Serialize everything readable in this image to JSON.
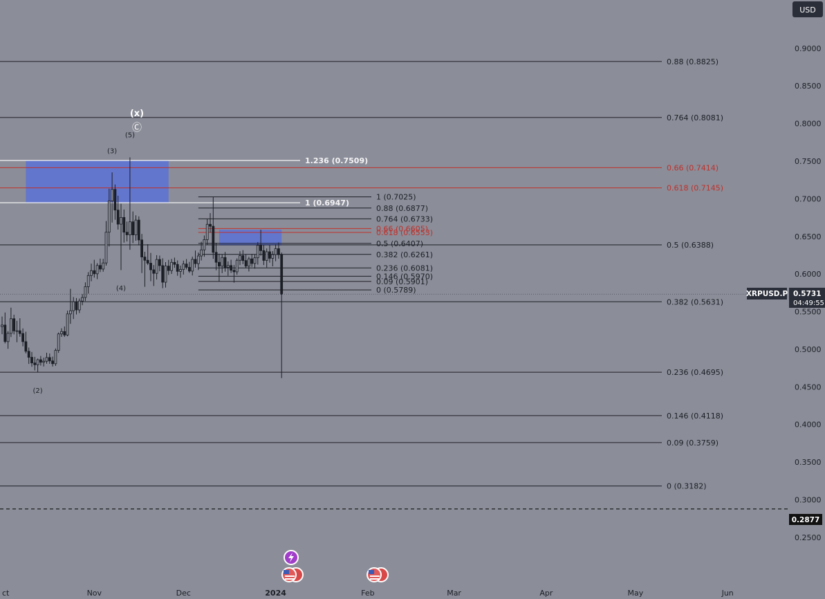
{
  "currency": "USD",
  "colors": {
    "background": "#8b8d98",
    "text": "#1c1e26",
    "line": "#1c1e26",
    "red": "#c0302b",
    "white": "#f4f4f6",
    "zone": "#5a72d6",
    "badge": "#2a2e39",
    "badge_text": "#ffffff"
  },
  "symbol_badge": {
    "label": "XRPUSD.P",
    "price": "0.5731",
    "countdown": "04:49:55"
  },
  "low_badge": {
    "price": "0.2877"
  },
  "annotations": {
    "x_label": "(x)",
    "c_label": "Ⓒ",
    "wave_2": "(2)",
    "wave_3": "(3)",
    "wave_4": "(4)",
    "wave_5": "(5)"
  },
  "chart_data": {
    "type": "candlestick",
    "symbol": "XRPUSD.P",
    "last_price": 0.5731,
    "ylim": [
      0.2333,
      0.9201
    ],
    "xlim": [
      "2023-10-01",
      "2024-06-30"
    ],
    "y_ticks": [
      "0.2500",
      "0.3000",
      "0.3500",
      "0.4000",
      "0.4500",
      "0.5000",
      "0.5500",
      "0.6000",
      "0.6500",
      "0.7000",
      "0.7500",
      "0.8000",
      "0.8500",
      "0.9000"
    ],
    "x_ticks": [
      {
        "label": "ct",
        "date": "2023-10-01"
      },
      {
        "label": "Nov",
        "date": "2023-11-01"
      },
      {
        "label": "Dec",
        "date": "2023-12-01"
      },
      {
        "label": "2024",
        "date": "2024-01-01"
      },
      {
        "label": "Feb",
        "date": "2024-02-01"
      },
      {
        "label": "Mar",
        "date": "2024-03-01"
      },
      {
        "label": "Apr",
        "date": "2024-04-01"
      },
      {
        "label": "May",
        "date": "2024-05-01"
      },
      {
        "label": "Jun",
        "date": "2024-06-01"
      }
    ],
    "zones": [
      {
        "from": "2023-10-09",
        "to": "2023-11-26",
        "low": 0.6947,
        "high": 0.7509
      },
      {
        "from": "2023-12-13",
        "to": "2024-01-03",
        "low": 0.638,
        "high": 0.659
      }
    ],
    "fib_large": [
      {
        "label": "0.88 (0.8825)",
        "value": 0.8825,
        "color": "dark"
      },
      {
        "label": "0.764 (0.8081)",
        "value": 0.8081,
        "color": "dark"
      },
      {
        "label": "0.66 (0.7414)",
        "value": 0.7414,
        "color": "red"
      },
      {
        "label": "0.618 (0.7145)",
        "value": 0.7145,
        "color": "red"
      },
      {
        "label": "0.5 (0.6388)",
        "value": 0.6388,
        "color": "dark"
      },
      {
        "label": "0.382 (0.5631)",
        "value": 0.5631,
        "color": "dark"
      },
      {
        "label": "0.236 (0.4695)",
        "value": 0.4695,
        "color": "dark"
      },
      {
        "label": "0.146 (0.4118)",
        "value": 0.4118,
        "color": "dark"
      },
      {
        "label": "0.09 (0.3759)",
        "value": 0.3759,
        "color": "dark"
      },
      {
        "label": "0 (0.3182)",
        "value": 0.3182,
        "color": "dark"
      }
    ],
    "fib_ext": [
      {
        "label": "1.236 (0.7509)",
        "value": 0.7509
      },
      {
        "label": "1 (0.6947)",
        "value": 0.6947
      }
    ],
    "fib_small": [
      {
        "label": "1 (0.7025)",
        "value": 0.7025,
        "color": "dark"
      },
      {
        "label": "0.88 (0.6877)",
        "value": 0.6877,
        "color": "dark"
      },
      {
        "label": "0.764 (0.6733)",
        "value": 0.6733,
        "color": "dark"
      },
      {
        "label": "0.66 (0.6605)",
        "value": 0.6605,
        "color": "red"
      },
      {
        "label": "0.618 (0.6553)",
        "value": 0.6553,
        "color": "red"
      },
      {
        "label": "0.5 (0.6407)",
        "value": 0.6407,
        "color": "dark"
      },
      {
        "label": "0.382 (0.6261)",
        "value": 0.6261,
        "color": "dark"
      },
      {
        "label": "0.236 (0.6081)",
        "value": 0.6081,
        "color": "dark"
      },
      {
        "label": "0.146 (0.5970)",
        "value": 0.597,
        "color": "dark"
      },
      {
        "label": "0.09 (0.5901)",
        "value": 0.5901,
        "color": "dark"
      },
      {
        "label": "0 (0.5789)",
        "value": 0.5789,
        "color": "dark"
      }
    ],
    "low_line": 0.2877,
    "wave_labels": [
      {
        "label": "(2)",
        "date": "2023-10-13",
        "value": 0.455
      },
      {
        "label": "(3)",
        "date": "2023-11-07",
        "value": 0.7551
      },
      {
        "label": "(4)",
        "date": "2023-11-10",
        "value": 0.591
      },
      {
        "label": "(5)",
        "date": "2023-11-13",
        "value": 0.776
      }
    ],
    "candles": [
      {
        "date": "2023-10-01",
        "open": 0.5301,
        "high": 0.5435,
        "low": 0.52,
        "close": 0.5322
      },
      {
        "date": "2023-10-02",
        "open": 0.5322,
        "high": 0.5489,
        "low": 0.5078,
        "close": 0.5102
      },
      {
        "date": "2023-10-03",
        "open": 0.5102,
        "high": 0.5241,
        "low": 0.5006,
        "close": 0.5212
      },
      {
        "date": "2023-10-04",
        "open": 0.5212,
        "high": 0.5553,
        "low": 0.5162,
        "close": 0.5406
      },
      {
        "date": "2023-10-05",
        "open": 0.5406,
        "high": 0.5459,
        "low": 0.5198,
        "close": 0.5244
      },
      {
        "date": "2023-10-06",
        "open": 0.5244,
        "high": 0.5379,
        "low": 0.5094,
        "close": 0.5246
      },
      {
        "date": "2023-10-07",
        "open": 0.5246,
        "high": 0.5412,
        "low": 0.5166,
        "close": 0.5209
      },
      {
        "date": "2023-10-08",
        "open": 0.5209,
        "high": 0.5277,
        "low": 0.5039,
        "close": 0.5101
      },
      {
        "date": "2023-10-09",
        "open": 0.5101,
        "high": 0.5233,
        "low": 0.4946,
        "close": 0.4973
      },
      {
        "date": "2023-10-10",
        "open": 0.4973,
        "high": 0.5022,
        "low": 0.4805,
        "close": 0.4893
      },
      {
        "date": "2023-10-11",
        "open": 0.4893,
        "high": 0.4964,
        "low": 0.4767,
        "close": 0.4818
      },
      {
        "date": "2023-10-12",
        "open": 0.4818,
        "high": 0.4899,
        "low": 0.4719,
        "close": 0.4794
      },
      {
        "date": "2023-10-13",
        "open": 0.4794,
        "high": 0.4876,
        "low": 0.4695,
        "close": 0.4861
      },
      {
        "date": "2023-10-14",
        "open": 0.4861,
        "high": 0.4911,
        "low": 0.4783,
        "close": 0.4827
      },
      {
        "date": "2023-10-15",
        "open": 0.4827,
        "high": 0.4888,
        "low": 0.4771,
        "close": 0.4841
      },
      {
        "date": "2023-10-16",
        "open": 0.4841,
        "high": 0.4953,
        "low": 0.4808,
        "close": 0.489
      },
      {
        "date": "2023-10-17",
        "open": 0.489,
        "high": 0.4944,
        "low": 0.4806,
        "close": 0.4845
      },
      {
        "date": "2023-10-18",
        "open": 0.4845,
        "high": 0.4902,
        "low": 0.4771,
        "close": 0.4808
      },
      {
        "date": "2023-10-19",
        "open": 0.4808,
        "high": 0.501,
        "low": 0.4779,
        "close": 0.4985
      },
      {
        "date": "2023-10-20",
        "open": 0.4985,
        "high": 0.5223,
        "low": 0.4952,
        "close": 0.5204
      },
      {
        "date": "2023-10-21",
        "open": 0.5204,
        "high": 0.5279,
        "low": 0.5165,
        "close": 0.5236
      },
      {
        "date": "2023-10-22",
        "open": 0.5236,
        "high": 0.5303,
        "low": 0.5164,
        "close": 0.5189
      },
      {
        "date": "2023-10-23",
        "open": 0.5189,
        "high": 0.5513,
        "low": 0.5172,
        "close": 0.547
      },
      {
        "date": "2023-10-24",
        "open": 0.547,
        "high": 0.5803,
        "low": 0.5338,
        "close": 0.5512
      },
      {
        "date": "2023-10-25",
        "open": 0.5512,
        "high": 0.5694,
        "low": 0.5402,
        "close": 0.5631
      },
      {
        "date": "2023-10-26",
        "open": 0.5631,
        "high": 0.5681,
        "low": 0.5463,
        "close": 0.5523
      },
      {
        "date": "2023-10-27",
        "open": 0.5523,
        "high": 0.5674,
        "low": 0.5481,
        "close": 0.5641
      },
      {
        "date": "2023-10-28",
        "open": 0.5641,
        "high": 0.5733,
        "low": 0.5586,
        "close": 0.5688
      },
      {
        "date": "2023-10-29",
        "open": 0.5688,
        "high": 0.5889,
        "low": 0.5641,
        "close": 0.5832
      },
      {
        "date": "2023-10-30",
        "open": 0.5832,
        "high": 0.6025,
        "low": 0.5739,
        "close": 0.598
      },
      {
        "date": "2023-10-31",
        "open": 0.598,
        "high": 0.6138,
        "low": 0.5904,
        "close": 0.6045
      },
      {
        "date": "2023-11-01",
        "open": 0.6045,
        "high": 0.6189,
        "low": 0.5952,
        "close": 0.6003
      },
      {
        "date": "2023-11-02",
        "open": 0.6003,
        "high": 0.6144,
        "low": 0.5932,
        "close": 0.6114
      },
      {
        "date": "2023-11-03",
        "open": 0.6114,
        "high": 0.6205,
        "low": 0.6025,
        "close": 0.6066
      },
      {
        "date": "2023-11-04",
        "open": 0.6066,
        "high": 0.6202,
        "low": 0.6031,
        "close": 0.6147
      },
      {
        "date": "2023-11-05",
        "open": 0.6147,
        "high": 0.6705,
        "low": 0.6112,
        "close": 0.6556
      },
      {
        "date": "2023-11-06",
        "open": 0.6556,
        "high": 0.7134,
        "low": 0.6366,
        "close": 0.6972
      },
      {
        "date": "2023-11-07",
        "open": 0.6972,
        "high": 0.7351,
        "low": 0.6684,
        "close": 0.7125
      },
      {
        "date": "2023-11-08",
        "open": 0.7125,
        "high": 0.719,
        "low": 0.6721,
        "close": 0.685
      },
      {
        "date": "2023-11-09",
        "open": 0.685,
        "high": 0.7041,
        "low": 0.6591,
        "close": 0.6663
      },
      {
        "date": "2023-11-10",
        "open": 0.6663,
        "high": 0.6935,
        "low": 0.6052,
        "close": 0.6752
      },
      {
        "date": "2023-11-11",
        "open": 0.6752,
        "high": 0.6858,
        "low": 0.6418,
        "close": 0.6556
      },
      {
        "date": "2023-11-12",
        "open": 0.6556,
        "high": 0.6697,
        "low": 0.6433,
        "close": 0.6521
      },
      {
        "date": "2023-11-13",
        "open": 0.6521,
        "high": 0.7551,
        "low": 0.6322,
        "close": 0.6694
      },
      {
        "date": "2023-11-14",
        "open": 0.6694,
        "high": 0.6832,
        "low": 0.6411,
        "close": 0.652
      },
      {
        "date": "2023-11-15",
        "open": 0.652,
        "high": 0.6781,
        "low": 0.6443,
        "close": 0.6717
      },
      {
        "date": "2023-11-16",
        "open": 0.6717,
        "high": 0.6766,
        "low": 0.6381,
        "close": 0.6453
      },
      {
        "date": "2023-11-17",
        "open": 0.6453,
        "high": 0.6533,
        "low": 0.6013,
        "close": 0.6226
      },
      {
        "date": "2023-11-18",
        "open": 0.6226,
        "high": 0.6295,
        "low": 0.583,
        "close": 0.6183
      },
      {
        "date": "2023-11-19",
        "open": 0.6183,
        "high": 0.6397,
        "low": 0.612,
        "close": 0.6144
      },
      {
        "date": "2023-11-20",
        "open": 0.6144,
        "high": 0.6281,
        "low": 0.5904,
        "close": 0.6056
      },
      {
        "date": "2023-11-21",
        "open": 0.6056,
        "high": 0.612,
        "low": 0.5841,
        "close": 0.6009
      },
      {
        "date": "2023-11-22",
        "open": 0.6009,
        "high": 0.6251,
        "low": 0.5927,
        "close": 0.6193
      },
      {
        "date": "2023-11-23",
        "open": 0.6193,
        "high": 0.6245,
        "low": 0.6037,
        "close": 0.6112
      },
      {
        "date": "2023-11-24",
        "open": 0.6112,
        "high": 0.6209,
        "low": 0.5812,
        "close": 0.5891
      },
      {
        "date": "2023-11-25",
        "open": 0.5891,
        "high": 0.6158,
        "low": 0.582,
        "close": 0.6106
      },
      {
        "date": "2023-11-26",
        "open": 0.6106,
        "high": 0.6188,
        "low": 0.5989,
        "close": 0.6046
      },
      {
        "date": "2023-11-27",
        "open": 0.6046,
        "high": 0.6201,
        "low": 0.6001,
        "close": 0.6155
      },
      {
        "date": "2023-11-28",
        "open": 0.6155,
        "high": 0.6218,
        "low": 0.6083,
        "close": 0.6128
      },
      {
        "date": "2023-11-29",
        "open": 0.6128,
        "high": 0.6181,
        "low": 0.5977,
        "close": 0.6035
      },
      {
        "date": "2023-11-30",
        "open": 0.6035,
        "high": 0.6112,
        "low": 0.595,
        "close": 0.6061
      },
      {
        "date": "2023-12-01",
        "open": 0.6061,
        "high": 0.6178,
        "low": 0.5993,
        "close": 0.6133
      },
      {
        "date": "2023-12-02",
        "open": 0.6133,
        "high": 0.6199,
        "low": 0.6062,
        "close": 0.6089
      },
      {
        "date": "2023-12-03",
        "open": 0.6089,
        "high": 0.6161,
        "low": 0.6016,
        "close": 0.6039
      },
      {
        "date": "2023-12-04",
        "open": 0.6039,
        "high": 0.6231,
        "low": 0.5981,
        "close": 0.6195
      },
      {
        "date": "2023-12-05",
        "open": 0.6195,
        "high": 0.6312,
        "low": 0.6084,
        "close": 0.6138
      },
      {
        "date": "2023-12-06",
        "open": 0.6138,
        "high": 0.6285,
        "low": 0.6053,
        "close": 0.624
      },
      {
        "date": "2023-12-07",
        "open": 0.624,
        "high": 0.6429,
        "low": 0.618,
        "close": 0.6321
      },
      {
        "date": "2023-12-08",
        "open": 0.6321,
        "high": 0.6512,
        "low": 0.623,
        "close": 0.6457
      },
      {
        "date": "2023-12-09",
        "open": 0.6457,
        "high": 0.6729,
        "low": 0.6383,
        "close": 0.6661
      },
      {
        "date": "2023-12-10",
        "open": 0.6661,
        "high": 0.6809,
        "low": 0.655,
        "close": 0.6635
      },
      {
        "date": "2023-12-11",
        "open": 0.6635,
        "high": 0.7025,
        "low": 0.6202,
        "close": 0.6288
      },
      {
        "date": "2023-12-12",
        "open": 0.6288,
        "high": 0.6415,
        "low": 0.605,
        "close": 0.6156
      },
      {
        "date": "2023-12-13",
        "open": 0.6156,
        "high": 0.627,
        "low": 0.5904,
        "close": 0.6105
      },
      {
        "date": "2023-12-14",
        "open": 0.6105,
        "high": 0.6262,
        "low": 0.6012,
        "close": 0.622
      },
      {
        "date": "2023-12-15",
        "open": 0.622,
        "high": 0.6293,
        "low": 0.6031,
        "close": 0.6088
      },
      {
        "date": "2023-12-16",
        "open": 0.6088,
        "high": 0.6167,
        "low": 0.5977,
        "close": 0.6113
      },
      {
        "date": "2023-12-17",
        "open": 0.6113,
        "high": 0.619,
        "low": 0.6014,
        "close": 0.605
      },
      {
        "date": "2023-12-18",
        "open": 0.605,
        "high": 0.612,
        "low": 0.5885,
        "close": 0.6029
      },
      {
        "date": "2023-12-19",
        "open": 0.6029,
        "high": 0.6208,
        "low": 0.5991,
        "close": 0.6183
      },
      {
        "date": "2023-12-20",
        "open": 0.6183,
        "high": 0.6302,
        "low": 0.6119,
        "close": 0.6244
      },
      {
        "date": "2023-12-21",
        "open": 0.6244,
        "high": 0.6317,
        "low": 0.6131,
        "close": 0.6179
      },
      {
        "date": "2023-12-22",
        "open": 0.6179,
        "high": 0.6262,
        "low": 0.6076,
        "close": 0.6105
      },
      {
        "date": "2023-12-23",
        "open": 0.6105,
        "high": 0.623,
        "low": 0.6034,
        "close": 0.6202
      },
      {
        "date": "2023-12-24",
        "open": 0.6202,
        "high": 0.6268,
        "low": 0.6096,
        "close": 0.614
      },
      {
        "date": "2023-12-25",
        "open": 0.614,
        "high": 0.6258,
        "low": 0.6072,
        "close": 0.6216
      },
      {
        "date": "2023-12-26",
        "open": 0.6216,
        "high": 0.6425,
        "low": 0.6125,
        "close": 0.6381
      },
      {
        "date": "2023-12-27",
        "open": 0.6381,
        "high": 0.6589,
        "low": 0.6244,
        "close": 0.6311
      },
      {
        "date": "2023-12-28",
        "open": 0.6311,
        "high": 0.6384,
        "low": 0.6119,
        "close": 0.6181
      },
      {
        "date": "2023-12-29",
        "open": 0.6181,
        "high": 0.634,
        "low": 0.6087,
        "close": 0.6296
      },
      {
        "date": "2023-12-30",
        "open": 0.6296,
        "high": 0.6386,
        "low": 0.6151,
        "close": 0.6209
      },
      {
        "date": "2023-12-31",
        "open": 0.6209,
        "high": 0.6305,
        "low": 0.6102,
        "close": 0.6258
      },
      {
        "date": "2024-01-01",
        "open": 0.6258,
        "high": 0.6395,
        "low": 0.617,
        "close": 0.6337
      },
      {
        "date": "2024-01-02",
        "open": 0.6337,
        "high": 0.642,
        "low": 0.6204,
        "close": 0.6257
      },
      {
        "date": "2024-01-03",
        "open": 0.6257,
        "high": 0.6285,
        "low": 0.4617,
        "close": 0.5731
      }
    ]
  }
}
